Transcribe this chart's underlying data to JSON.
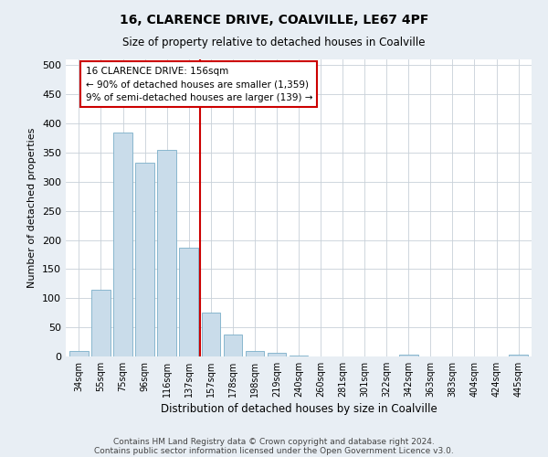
{
  "title1": "16, CLARENCE DRIVE, COALVILLE, LE67 4PF",
  "title2": "Size of property relative to detached houses in Coalville",
  "xlabel": "Distribution of detached houses by size in Coalville",
  "ylabel": "Number of detached properties",
  "categories": [
    "34sqm",
    "55sqm",
    "75sqm",
    "96sqm",
    "116sqm",
    "137sqm",
    "157sqm",
    "178sqm",
    "198sqm",
    "219sqm",
    "240sqm",
    "260sqm",
    "281sqm",
    "301sqm",
    "322sqm",
    "342sqm",
    "363sqm",
    "383sqm",
    "404sqm",
    "424sqm",
    "445sqm"
  ],
  "values": [
    10,
    115,
    385,
    333,
    354,
    187,
    75,
    37,
    10,
    6,
    2,
    0,
    0,
    0,
    0,
    3,
    0,
    0,
    0,
    0,
    3
  ],
  "bar_color": "#c9dcea",
  "bar_edge_color": "#7aaec8",
  "vline_index": 6,
  "vline_color": "#cc0000",
  "annotation_text": "16 CLARENCE DRIVE: 156sqm\n← 90% of detached houses are smaller (1,359)\n9% of semi-detached houses are larger (139) →",
  "annotation_box_color": "#cc0000",
  "ylim": [
    0,
    510
  ],
  "yticks": [
    0,
    50,
    100,
    150,
    200,
    250,
    300,
    350,
    400,
    450,
    500
  ],
  "footnote1": "Contains HM Land Registry data © Crown copyright and database right 2024.",
  "footnote2": "Contains public sector information licensed under the Open Government Licence v3.0.",
  "bg_color": "#e8eef4",
  "plot_bg_color": "#ffffff",
  "grid_color": "#c8d0d8"
}
